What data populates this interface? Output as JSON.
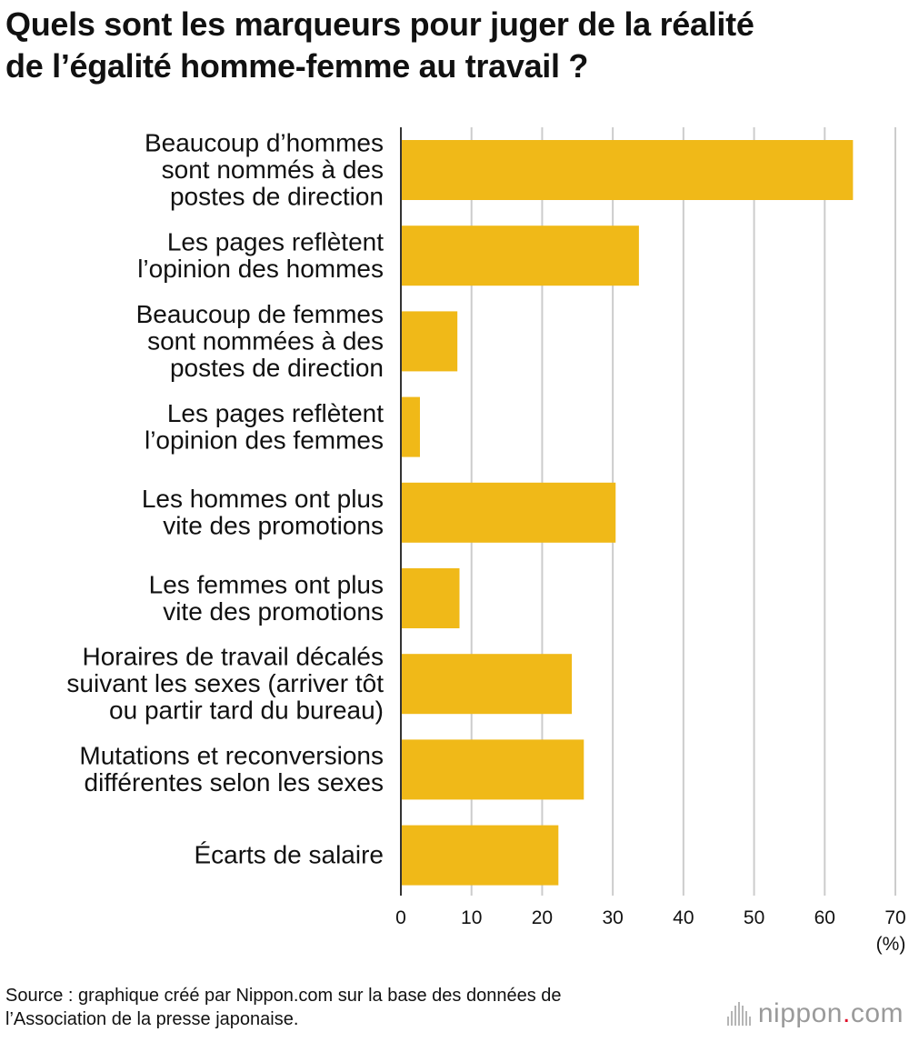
{
  "title_lines": [
    "Quels sont les marqueurs pour juger de la réalité",
    "de l’égalité homme-femme au travail ?"
  ],
  "chart_data": {
    "type": "bar",
    "orientation": "horizontal",
    "categories": [
      [
        "Beaucoup d’hommes",
        "sont nommés à des",
        "postes de direction"
      ],
      [
        "Les pages reflètent",
        "l’opinion des hommes"
      ],
      [
        "Beaucoup de femmes",
        "sont nommées à des",
        "postes de direction"
      ],
      [
        "Les pages reflètent",
        "l’opinion des femmes"
      ],
      [
        "Les hommes ont plus",
        "vite des promotions"
      ],
      [
        "Les femmes ont plus",
        "vite des promotions"
      ],
      [
        "Horaires de travail décalés",
        "suivant les sexes (arriver tôt",
        "ou partir tard du bureau)"
      ],
      [
        "Mutations et reconversions",
        "différentes selon les sexes"
      ],
      [
        "Écarts de salaire"
      ]
    ],
    "values": [
      64.0,
      33.7,
      8.0,
      2.7,
      30.4,
      8.3,
      24.2,
      25.9,
      22.3
    ],
    "xlim": [
      0,
      70
    ],
    "xticks": [
      "0",
      "10",
      "20",
      "30",
      "40",
      "50",
      "60",
      "70"
    ],
    "unit_label": "(%)",
    "grid": true,
    "bar_color": "#f0b918",
    "grid_color": "#cccccc"
  },
  "source_lines": [
    "Source : graphique créé par Nippon.com sur la base des données de",
    "l’Association de la presse japonaise."
  ],
  "logo": {
    "name": "nippon",
    "dot": ".",
    "tld": "com"
  }
}
